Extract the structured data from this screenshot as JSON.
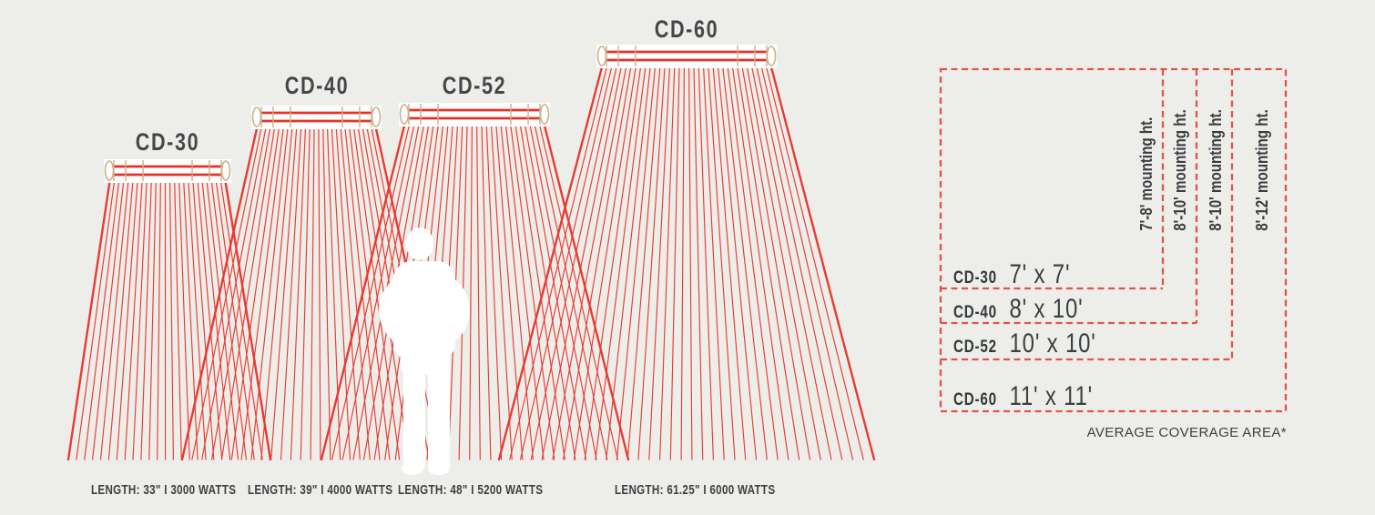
{
  "colors": {
    "background": "#edeeea",
    "beam_red": "#e93a32",
    "tube_red": "#e3322a",
    "dashed_box_red": "#df554c",
    "fixture_tan": "#c9b089",
    "text_dark": "#3c4043",
    "silhouette_white": "#ffffff"
  },
  "heaters": [
    {
      "id": "cd-30",
      "name": "CD-30",
      "length_label": "LENGTH: 33\" I 3000 WATTS",
      "coverage": "7' x 7'",
      "mounting_height": "7'-8' mounting ht."
    },
    {
      "id": "cd-40",
      "name": "CD-40",
      "length_label": "LENGTH: 39\" I 4000 WATTS",
      "coverage": "8' x 10'",
      "mounting_height": "8'-10' mounting ht."
    },
    {
      "id": "cd-52",
      "name": "CD-52",
      "length_label": "LENGTH: 48\" I 5200 WATTS",
      "coverage": "10' x 10'",
      "mounting_height": "8'-10' mounting ht."
    },
    {
      "id": "cd-60",
      "name": "CD-60",
      "length_label": "LENGTH: 61.25\" I 6000 WATTS",
      "coverage": "11' x 11'",
      "mounting_height": "8'-12' mounting ht."
    }
  ],
  "coverage_chart": {
    "caption": "AVERAGE COVERAGE AREA*"
  }
}
